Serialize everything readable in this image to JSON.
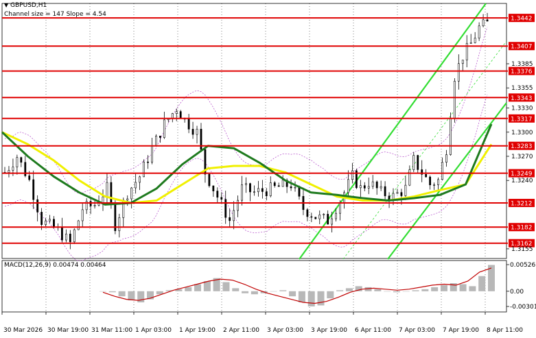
{
  "header": {
    "symbol": "GBPUSD,H1",
    "channel_info": "Channel size = 147 Slope = 4.54"
  },
  "macd": {
    "label": "MACD(12,26,9) 0.00474 0.00464",
    "ticks": [
      "0.00526",
      "0.00",
      "-0.00301"
    ]
  },
  "colors": {
    "level_line": "#e00000",
    "level_label_bg": "#e00000",
    "price_bars": "#000000",
    "ma_fast": "#1e7a1e",
    "ma_slow": "#f0f000",
    "channel": "#33dd33",
    "bands": "#b044c8",
    "macd_hist": "#b8b8b8",
    "macd_signal": "#c00000",
    "grid": "#000000"
  },
  "chart_data": {
    "type": "candlestick",
    "symbol": "GBPUSD",
    "timeframe": "H1",
    "ylim": [
      1.3143,
      1.346
    ],
    "y_ticks": [
      "1.3385",
      "1.3355",
      "1.3330",
      "1.3300",
      "1.3270",
      "1.3240",
      "1.3155"
    ],
    "x_ticks": [
      "30 Mar 2026",
      "30 Mar 19:00",
      "31 Mar 11:00",
      "1 Apr 03:00",
      "1 Apr 19:00",
      "2 Apr 11:00",
      "3 Apr 03:00",
      "3 Apr 19:00",
      "6 Apr 11:00",
      "7 Apr 03:00",
      "7 Apr 19:00",
      "8 Apr 11:00"
    ],
    "levels": [
      "1.3442",
      "1.3407",
      "1.3376",
      "1.3343",
      "1.3317",
      "1.3283",
      "1.3249",
      "1.3212",
      "1.3182",
      "1.3162"
    ],
    "close_path": [
      {
        "i": 0,
        "v": 1.325
      },
      {
        "i": 3,
        "v": 1.327
      },
      {
        "i": 6,
        "v": 1.324
      },
      {
        "i": 9,
        "v": 1.319
      },
      {
        "i": 13,
        "v": 1.3178
      },
      {
        "i": 16,
        "v": 1.3162
      },
      {
        "i": 19,
        "v": 1.3205
      },
      {
        "i": 22,
        "v": 1.321
      },
      {
        "i": 25,
        "v": 1.323
      },
      {
        "i": 27,
        "v": 1.3185
      },
      {
        "i": 30,
        "v": 1.3225
      },
      {
        "i": 33,
        "v": 1.3245
      },
      {
        "i": 36,
        "v": 1.328
      },
      {
        "i": 39,
        "v": 1.331
      },
      {
        "i": 42,
        "v": 1.333
      },
      {
        "i": 44,
        "v": 1.3315
      },
      {
        "i": 47,
        "v": 1.33
      },
      {
        "i": 49,
        "v": 1.325
      },
      {
        "i": 52,
        "v": 1.322
      },
      {
        "i": 55,
        "v": 1.319
      },
      {
        "i": 58,
        "v": 1.323
      },
      {
        "i": 61,
        "v": 1.3225
      },
      {
        "i": 64,
        "v": 1.3228
      },
      {
        "i": 67,
        "v": 1.3232
      },
      {
        "i": 70,
        "v": 1.3235
      },
      {
        "i": 73,
        "v": 1.3205
      },
      {
        "i": 76,
        "v": 1.3195
      },
      {
        "i": 79,
        "v": 1.319
      },
      {
        "i": 82,
        "v": 1.3215
      },
      {
        "i": 85,
        "v": 1.3245
      },
      {
        "i": 87,
        "v": 1.323
      },
      {
        "i": 89,
        "v": 1.3238
      },
      {
        "i": 92,
        "v": 1.3225
      },
      {
        "i": 95,
        "v": 1.322
      },
      {
        "i": 98,
        "v": 1.323
      },
      {
        "i": 100,
        "v": 1.3265
      },
      {
        "i": 102,
        "v": 1.325
      },
      {
        "i": 104,
        "v": 1.3235
      },
      {
        "i": 106,
        "v": 1.324
      },
      {
        "i": 108,
        "v": 1.328
      },
      {
        "i": 110,
        "v": 1.337
      },
      {
        "i": 112,
        "v": 1.3395
      },
      {
        "i": 114,
        "v": 1.341
      },
      {
        "i": 116,
        "v": 1.343
      },
      {
        "i": 118,
        "v": 1.3435
      }
    ],
    "ma_fast": [
      1.33,
      1.327,
      1.3245,
      1.3225,
      1.321,
      1.3212,
      1.323,
      1.326,
      1.3283,
      1.328,
      1.3262,
      1.324,
      1.3225,
      1.3222,
      1.3218,
      1.3215,
      1.3218,
      1.3222,
      1.3235,
      1.331
    ],
    "ma_slow": [
      1.33,
      1.3285,
      1.3265,
      1.324,
      1.322,
      1.3212,
      1.3215,
      1.3235,
      1.3255,
      1.3258,
      1.3258,
      1.325,
      1.3235,
      1.322,
      1.3215,
      1.3215,
      1.322,
      1.3228,
      1.3235,
      1.3285
    ],
    "macd_hist": [
      0.0,
      -0.0002,
      -0.001,
      -0.0018,
      -0.0022,
      -0.0016,
      -0.0006,
      0.0002,
      0.0004,
      0.0008,
      0.0014,
      0.002,
      0.0026,
      0.0018,
      0.0006,
      -0.0004,
      -0.0006,
      -0.0004,
      0.0,
      0.0002,
      -0.001,
      -0.0022,
      -0.003,
      -0.0028,
      -0.0014,
      0.0002,
      0.0006,
      0.001,
      0.0008,
      0.0004,
      0.0,
      -0.0002,
      0.0,
      0.0002,
      0.0004,
      0.0008,
      0.0012,
      0.0016,
      0.0014,
      0.001,
      0.003,
      0.0052
    ],
    "macd_signal": [
      -0.0002,
      -0.001,
      -0.0016,
      -0.0018,
      -0.0014,
      -0.0006,
      0.0002,
      0.0008,
      0.0014,
      0.002,
      0.0024,
      0.0022,
      0.0014,
      0.0004,
      -0.0004,
      -0.001,
      -0.0016,
      -0.0022,
      -0.0024,
      -0.002,
      -0.0012,
      -0.0002,
      0.0004,
      0.0006,
      0.0004,
      0.0002,
      0.0004,
      0.0008,
      0.0012,
      0.0014,
      0.0012,
      0.002,
      0.0038,
      0.0046
    ]
  }
}
